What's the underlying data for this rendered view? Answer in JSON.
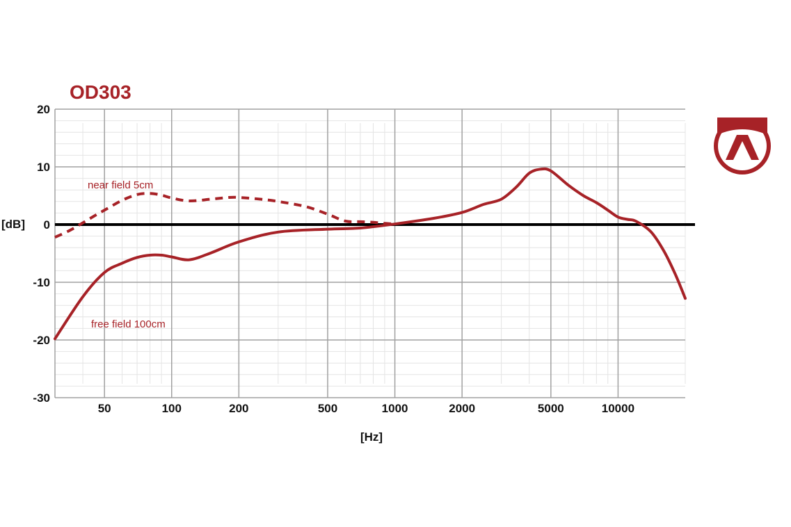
{
  "chart_data": {
    "type": "line",
    "title": "OD303",
    "xlabel": "[Hz]",
    "ylabel": "[dB]",
    "x_scale": "log",
    "xlim": [
      30,
      20000
    ],
    "ylim": [
      -30,
      20
    ],
    "x_ticks": [
      50,
      100,
      200,
      500,
      1000,
      2000,
      5000,
      10000
    ],
    "x_tick_labels": [
      "50",
      "100",
      "200",
      "500",
      "1000",
      "2000",
      "5000",
      "10000"
    ],
    "y_ticks": [
      20,
      10,
      0,
      -10,
      -20,
      -30
    ],
    "y_tick_labels": [
      "20",
      "10",
      "0",
      "-10",
      "-20",
      "-30"
    ],
    "grid": true,
    "legend": "inline labels",
    "accent_color": "#a72227",
    "series": [
      {
        "name": "near field 5cm",
        "style": "dashed",
        "x": [
          30,
          35,
          40,
          45,
          50,
          60,
          70,
          80,
          90,
          100,
          120,
          150,
          180,
          200,
          250,
          300,
          400,
          500,
          600,
          700,
          800,
          900,
          1000
        ],
        "y": [
          -2.2,
          -1.0,
          0.3,
          1.5,
          2.5,
          4.2,
          5.2,
          5.4,
          5.1,
          4.6,
          4.1,
          4.4,
          4.7,
          4.7,
          4.4,
          4.0,
          3.1,
          1.8,
          0.6,
          0.5,
          0.4,
          0.2,
          0.1
        ]
      },
      {
        "name": "free field 100cm",
        "style": "solid",
        "x": [
          30,
          40,
          50,
          60,
          70,
          80,
          90,
          100,
          120,
          150,
          200,
          300,
          500,
          700,
          1000,
          1500,
          2000,
          2500,
          3000,
          3500,
          4000,
          4500,
          5000,
          6000,
          7000,
          8000,
          9000,
          10000,
          11000,
          12000,
          14000,
          16000,
          18000,
          20000
        ],
        "y": [
          -19.8,
          -12.5,
          -8.3,
          -6.7,
          -5.7,
          -5.3,
          -5.3,
          -5.6,
          -6.1,
          -4.9,
          -3.0,
          -1.3,
          -0.8,
          -0.6,
          0.1,
          1.1,
          2.1,
          3.5,
          4.4,
          6.5,
          8.9,
          9.6,
          9.3,
          6.8,
          5.0,
          3.8,
          2.5,
          1.3,
          0.9,
          0.6,
          -1.2,
          -4.5,
          -8.5,
          -12.8
        ]
      }
    ],
    "annotations": [
      "near field 5cm",
      "free field 100cm"
    ]
  }
}
